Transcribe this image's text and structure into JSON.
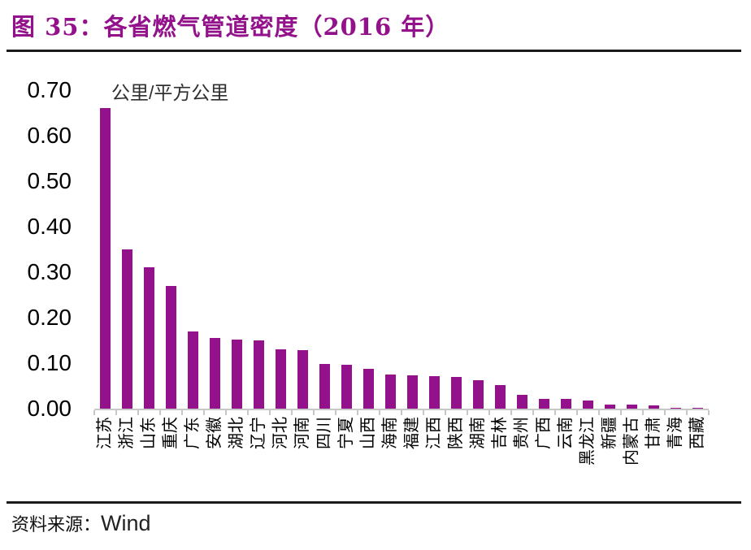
{
  "title": "图 35：各省燃气管道密度（2016 年）",
  "source": {
    "label": "资料来源：",
    "value": "Wind"
  },
  "chart_data": {
    "type": "bar",
    "title": "各省燃气管道密度（2016 年）",
    "unit": "公里/平方公里",
    "xlabel": "",
    "ylabel": "公里/平方公里",
    "ylim": [
      0,
      0.7
    ],
    "ytick_step": 0.1,
    "yticks": [
      "0.70",
      "0.60",
      "0.50",
      "0.40",
      "0.30",
      "0.20",
      "0.10",
      "0.00"
    ],
    "grid": "off",
    "legend": "none",
    "bar_color": "#93128C",
    "axis_color": "#c8c8c8",
    "categories": [
      "江苏",
      "浙江",
      "山东",
      "重庆",
      "广东",
      "安徽",
      "湖北",
      "辽宁",
      "河北",
      "河南",
      "四川",
      "宁夏",
      "山西",
      "海南",
      "福建",
      "江西",
      "陕西",
      "湖南",
      "吉林",
      "贵州",
      "广西",
      "云南",
      "黑龙江",
      "新疆",
      "内蒙古",
      "甘肃",
      "青海",
      "西藏"
    ],
    "values": [
      0.66,
      0.35,
      0.31,
      0.27,
      0.17,
      0.156,
      0.152,
      0.15,
      0.131,
      0.128,
      0.098,
      0.096,
      0.088,
      0.075,
      0.073,
      0.071,
      0.07,
      0.062,
      0.051,
      0.03,
      0.022,
      0.022,
      0.018,
      0.009,
      0.009,
      0.007,
      0.002,
      0.001
    ]
  }
}
